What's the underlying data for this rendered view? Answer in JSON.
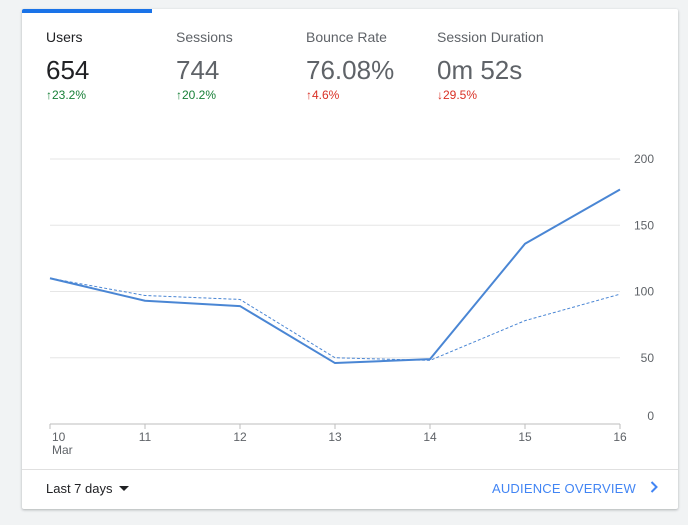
{
  "metrics": [
    {
      "label": "Users",
      "value": "654",
      "change": "23.2%",
      "direction": "up",
      "active": true
    },
    {
      "label": "Sessions",
      "value": "744",
      "change": "20.2%",
      "direction": "up",
      "active": false
    },
    {
      "label": "Bounce Rate",
      "value": "76.08%",
      "change": "4.6%",
      "direction": "up",
      "trend": "bad",
      "active": false
    },
    {
      "label": "Session Duration",
      "value": "0m 52s",
      "change": "29.5%",
      "direction": "down",
      "trend": "bad",
      "active": false
    }
  ],
  "colors": {
    "accent": "#1a73e8",
    "series": "#4a86d4",
    "positive": "#188038",
    "negative": "#d93025"
  },
  "chart_data": {
    "type": "line",
    "x": [
      "10",
      "11",
      "12",
      "13",
      "14",
      "15",
      "16"
    ],
    "x_sublabels": [
      "Mar",
      "",
      "",
      "",
      "",
      "",
      ""
    ],
    "series": [
      {
        "values": [
          110,
          93,
          89,
          46,
          49,
          136,
          177
        ],
        "style": "solid"
      },
      {
        "values": [
          110,
          97,
          94,
          50,
          48,
          78,
          98
        ],
        "style": "dashed"
      }
    ],
    "yticks": [
      0,
      50,
      100,
      150,
      200
    ],
    "ylim": [
      0,
      200
    ],
    "y_axis_position": "right",
    "grid": true
  },
  "footer": {
    "range_label": "Last 7 days",
    "range_icon": "caret-down-icon",
    "overview_label": "AUDIENCE OVERVIEW",
    "overview_icon": "chevron-right-icon"
  }
}
